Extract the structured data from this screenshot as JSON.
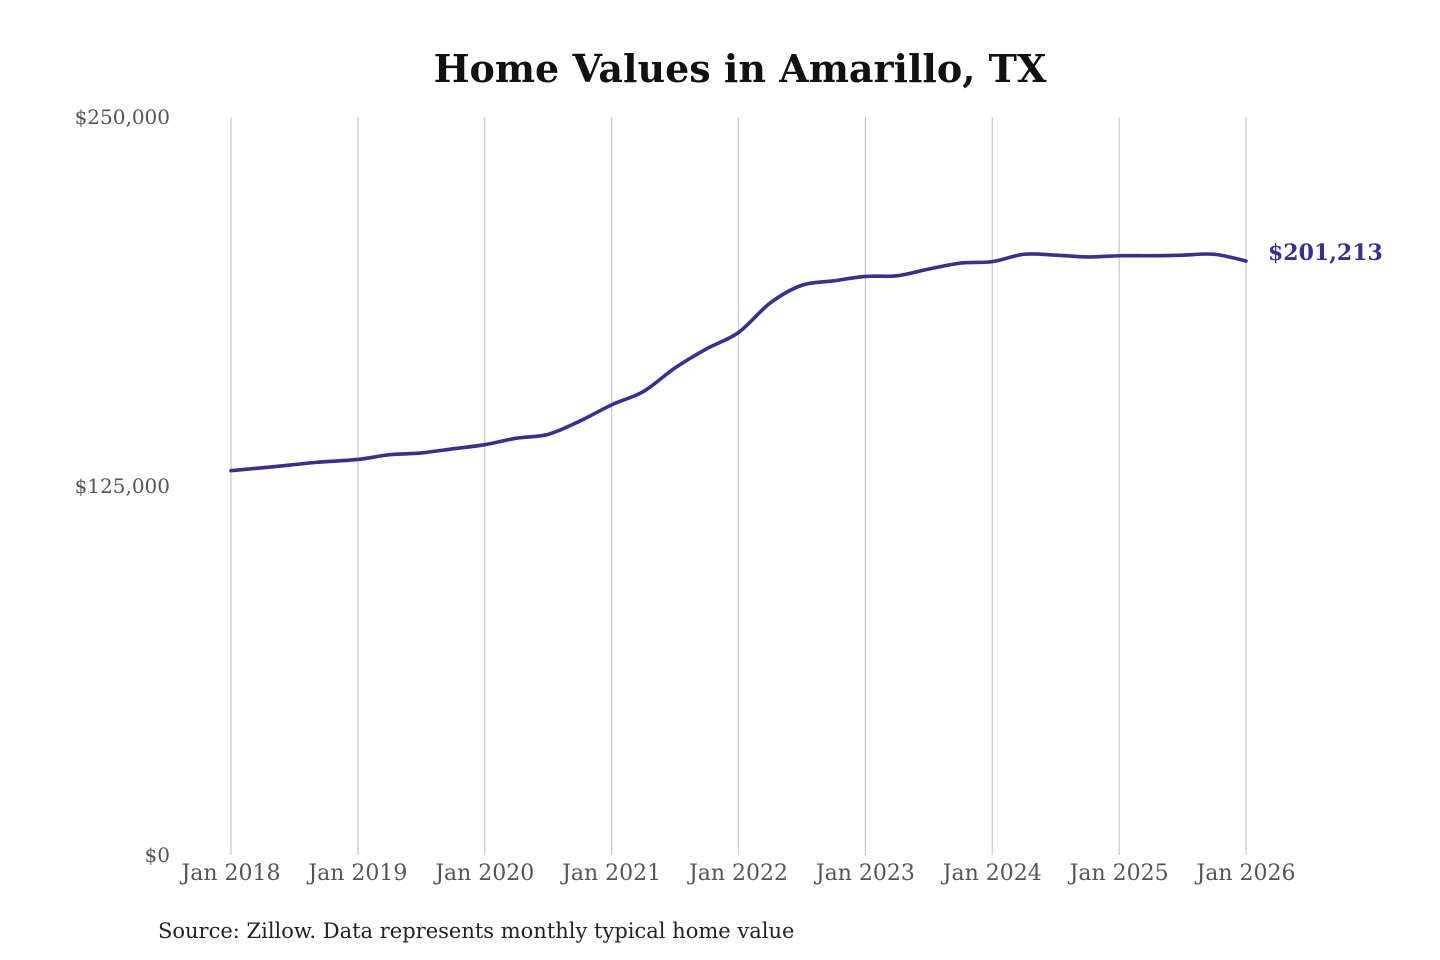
{
  "colors": {
    "series": "#35318f",
    "grid": "#c8c8c8",
    "title": "#111111",
    "tick": "#555555"
  },
  "chart_data": {
    "type": "line",
    "title": "Home Values in Amarillo, TX",
    "xlabel": "",
    "ylabel": "",
    "ylim": [
      0,
      250000
    ],
    "yticks": [
      0,
      125000,
      250000
    ],
    "ytick_labels": [
      "$0",
      "$125,000",
      "$250,000"
    ],
    "xlim": [
      2018,
      2026
    ],
    "xticks": [
      2018,
      2019,
      2020,
      2021,
      2022,
      2023,
      2024,
      2025,
      2026
    ],
    "xtick_labels": [
      "Jan 2018",
      "Jan 2019",
      "Jan 2020",
      "Jan 2021",
      "Jan 2022",
      "Jan 2023",
      "Jan 2024",
      "Jan 2025",
      "Jan 2026"
    ],
    "grid": "vertical",
    "legend": "none",
    "series": [
      {
        "points": [
          [
            2018.0,
            130200
          ],
          [
            2018.33,
            131500
          ],
          [
            2018.67,
            133000
          ],
          [
            2019.0,
            134000
          ],
          [
            2019.25,
            135600
          ],
          [
            2019.5,
            136200
          ],
          [
            2019.75,
            137600
          ],
          [
            2020.0,
            139000
          ],
          [
            2020.25,
            141200
          ],
          [
            2020.5,
            142500
          ],
          [
            2020.75,
            147000
          ],
          [
            2021.0,
            152500
          ],
          [
            2021.25,
            157000
          ],
          [
            2021.5,
            165000
          ],
          [
            2021.75,
            171500
          ],
          [
            2022.0,
            177000
          ],
          [
            2022.25,
            187000
          ],
          [
            2022.5,
            193000
          ],
          [
            2022.75,
            194500
          ],
          [
            2023.0,
            196000
          ],
          [
            2023.25,
            196200
          ],
          [
            2023.5,
            198500
          ],
          [
            2023.75,
            200500
          ],
          [
            2024.0,
            201000
          ],
          [
            2024.25,
            203500
          ],
          [
            2024.5,
            203200
          ],
          [
            2024.75,
            202600
          ],
          [
            2025.0,
            203000
          ],
          [
            2025.25,
            203000
          ],
          [
            2025.5,
            203200
          ],
          [
            2025.75,
            203500
          ],
          [
            2026.0,
            201213
          ]
        ]
      }
    ],
    "end_label": "$201,213",
    "source": "Source: Zillow. Data represents monthly typical home value"
  }
}
